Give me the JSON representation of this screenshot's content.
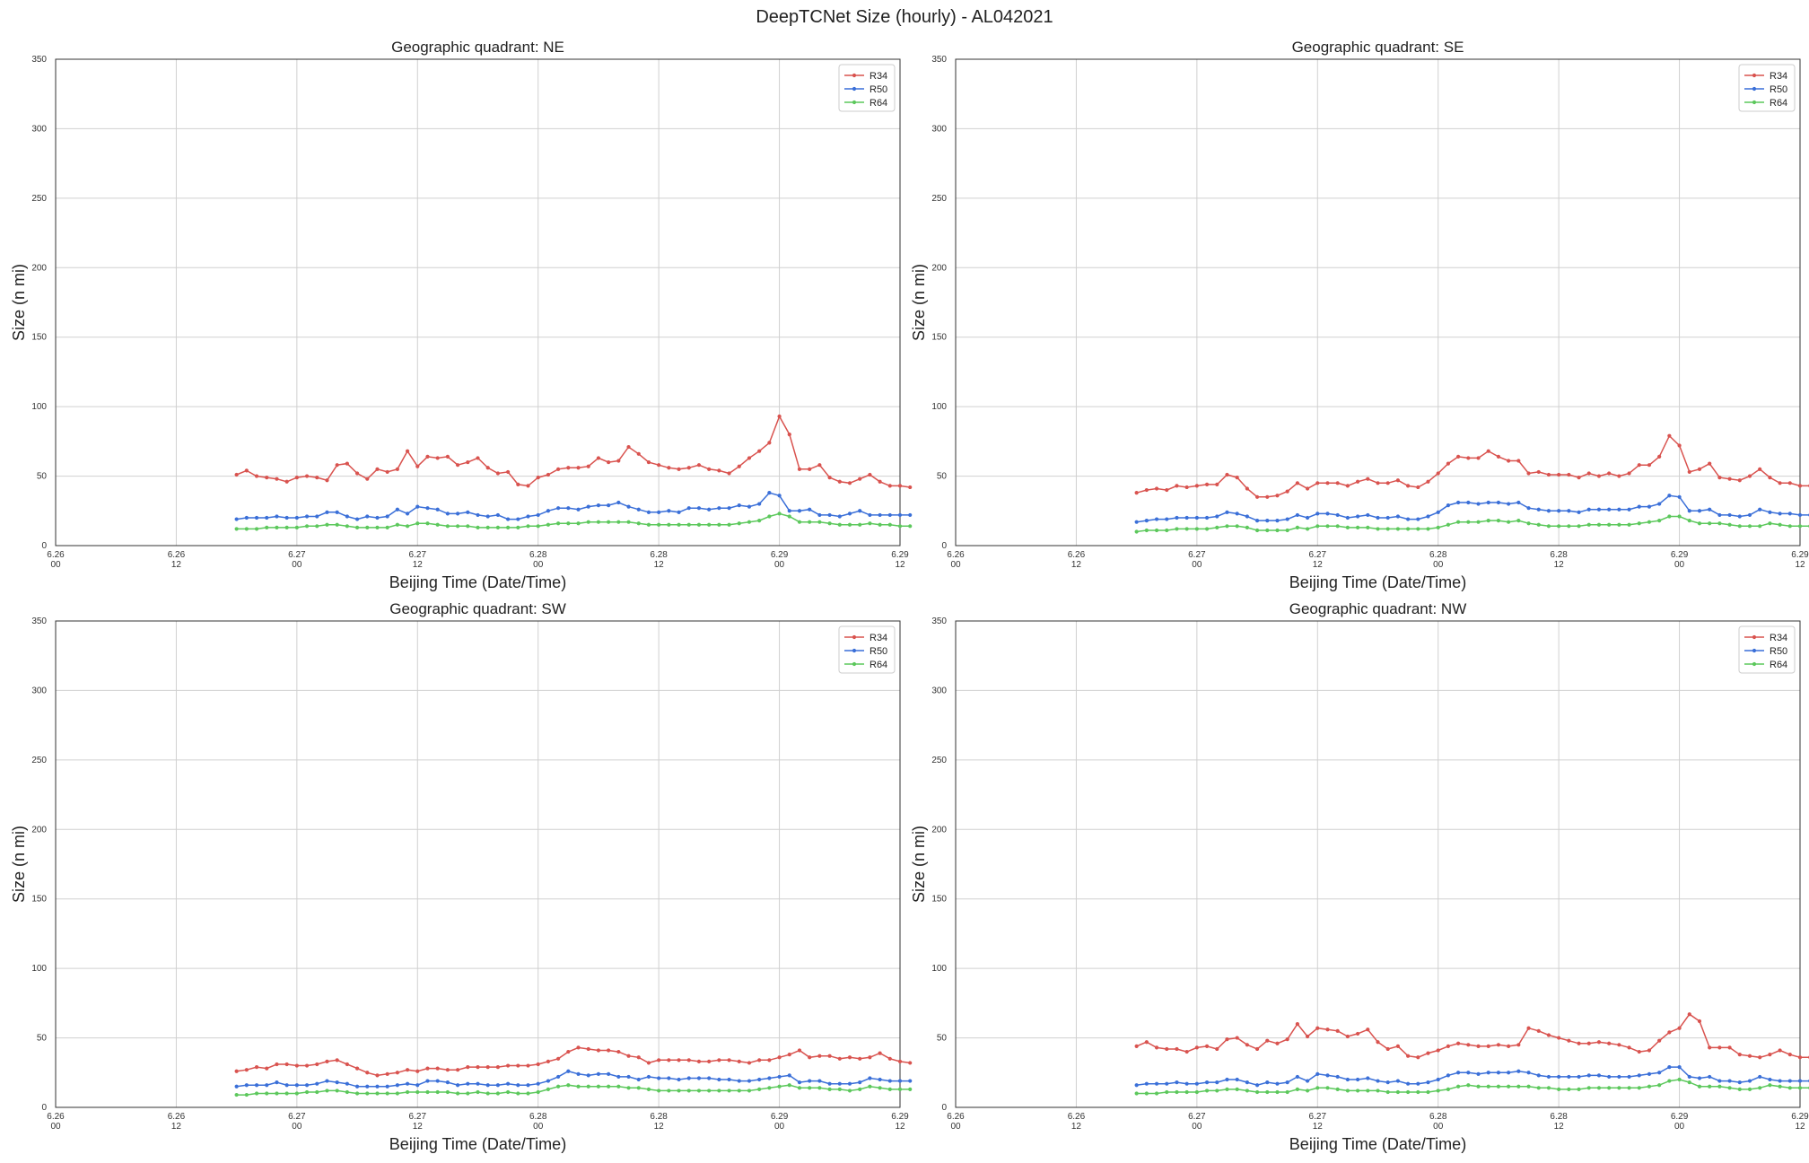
{
  "figure": {
    "title": "DeepTCNet Size (hourly) - AL042021"
  },
  "colors": {
    "R34": "#d9534f",
    "R50": "#3a6fd8",
    "R64": "#5cc85c",
    "grid": "#d0d0d0",
    "frame": "#333333"
  },
  "chart_data": [
    {
      "type": "line",
      "title": "Geographic quadrant: NE",
      "xlabel": "Beijing Time (Date/Time)",
      "ylabel": "Size (n mi)",
      "ylim": [
        0,
        350
      ],
      "yticks": [
        0,
        50,
        100,
        150,
        200,
        250,
        300,
        350
      ],
      "x_range_hours": [
        0,
        84
      ],
      "x_start_hour": 18,
      "x_step_hours": 1,
      "xtick_labels": [
        [
          "6.26",
          "00"
        ],
        [
          "6.26",
          "12"
        ],
        [
          "6.27",
          "00"
        ],
        [
          "6.27",
          "12"
        ],
        [
          "6.28",
          "00"
        ],
        [
          "6.28",
          "12"
        ],
        [
          "6.29",
          "00"
        ],
        [
          "6.29",
          "12"
        ]
      ],
      "grid": true,
      "legend": "top-right",
      "series": [
        {
          "name": "R34",
          "values": [
            51,
            54,
            50,
            49,
            48,
            46,
            49,
            50,
            49,
            47,
            58,
            59,
            52,
            48,
            55,
            53,
            55,
            68,
            57,
            64,
            63,
            64,
            58,
            60,
            63,
            56,
            52,
            53,
            44,
            43,
            49,
            51,
            55,
            56,
            56,
            57,
            63,
            60,
            61,
            71,
            66,
            60,
            58,
            56,
            55,
            56,
            58,
            55,
            54,
            52,
            57,
            63,
            68,
            74,
            93,
            80,
            55,
            55,
            58,
            49,
            46,
            45,
            48,
            51,
            46,
            43,
            43,
            42
          ]
        },
        {
          "name": "R50",
          "values": [
            19,
            20,
            20,
            20,
            21,
            20,
            20,
            21,
            21,
            24,
            24,
            21,
            19,
            21,
            20,
            21,
            26,
            23,
            28,
            27,
            26,
            23,
            23,
            24,
            22,
            21,
            22,
            19,
            19,
            21,
            22,
            25,
            27,
            27,
            26,
            28,
            29,
            29,
            31,
            28,
            26,
            24,
            24,
            25,
            24,
            27,
            27,
            26,
            27,
            27,
            29,
            28,
            30,
            38,
            36,
            25,
            25,
            26,
            22,
            22,
            21,
            23,
            25,
            22,
            22,
            22,
            22,
            22
          ]
        },
        {
          "name": "R64",
          "values": [
            12,
            12,
            12,
            13,
            13,
            13,
            13,
            14,
            14,
            15,
            15,
            14,
            13,
            13,
            13,
            13,
            15,
            14,
            16,
            16,
            15,
            14,
            14,
            14,
            13,
            13,
            13,
            13,
            13,
            14,
            14,
            15,
            16,
            16,
            16,
            17,
            17,
            17,
            17,
            17,
            16,
            15,
            15,
            15,
            15,
            15,
            15,
            15,
            15,
            15,
            16,
            17,
            18,
            21,
            23,
            21,
            17,
            17,
            17,
            16,
            15,
            15,
            15,
            16,
            15,
            15,
            14,
            14
          ]
        }
      ]
    },
    {
      "type": "line",
      "title": "Geographic quadrant: SE",
      "xlabel": "Beijing Time (Date/Time)",
      "ylabel": "Size (n mi)",
      "ylim": [
        0,
        350
      ],
      "yticks": [
        0,
        50,
        100,
        150,
        200,
        250,
        300,
        350
      ],
      "x_range_hours": [
        0,
        84
      ],
      "x_start_hour": 18,
      "x_step_hours": 1,
      "xtick_labels": [
        [
          "6.26",
          "00"
        ],
        [
          "6.26",
          "12"
        ],
        [
          "6.27",
          "00"
        ],
        [
          "6.27",
          "12"
        ],
        [
          "6.28",
          "00"
        ],
        [
          "6.28",
          "12"
        ],
        [
          "6.29",
          "00"
        ],
        [
          "6.29",
          "12"
        ]
      ],
      "grid": true,
      "legend": "top-right",
      "series": [
        {
          "name": "R34",
          "values": [
            38,
            40,
            41,
            40,
            43,
            42,
            43,
            44,
            44,
            51,
            49,
            41,
            35,
            35,
            36,
            39,
            45,
            41,
            45,
            45,
            45,
            43,
            46,
            48,
            45,
            45,
            47,
            43,
            42,
            46,
            52,
            59,
            64,
            63,
            63,
            68,
            64,
            61,
            61,
            52,
            53,
            51,
            51,
            51,
            49,
            52,
            50,
            52,
            50,
            52,
            58,
            58,
            64,
            79,
            72,
            53,
            55,
            59,
            49,
            48,
            47,
            50,
            55,
            49,
            45,
            45,
            43,
            43
          ]
        },
        {
          "name": "R50",
          "values": [
            17,
            18,
            19,
            19,
            20,
            20,
            20,
            20,
            21,
            24,
            23,
            21,
            18,
            18,
            18,
            19,
            22,
            20,
            23,
            23,
            22,
            20,
            21,
            22,
            20,
            20,
            21,
            19,
            19,
            21,
            24,
            29,
            31,
            31,
            30,
            31,
            31,
            30,
            31,
            27,
            26,
            25,
            25,
            25,
            24,
            26,
            26,
            26,
            26,
            26,
            28,
            28,
            30,
            36,
            35,
            25,
            25,
            26,
            22,
            22,
            21,
            22,
            26,
            24,
            23,
            23,
            22,
            22
          ]
        },
        {
          "name": "R64",
          "values": [
            10,
            11,
            11,
            11,
            12,
            12,
            12,
            12,
            13,
            14,
            14,
            13,
            11,
            11,
            11,
            11,
            13,
            12,
            14,
            14,
            14,
            13,
            13,
            13,
            12,
            12,
            12,
            12,
            12,
            12,
            13,
            15,
            17,
            17,
            17,
            18,
            18,
            17,
            18,
            16,
            15,
            14,
            14,
            14,
            14,
            15,
            15,
            15,
            15,
            15,
            16,
            17,
            18,
            21,
            21,
            18,
            16,
            16,
            16,
            15,
            14,
            14,
            14,
            16,
            15,
            14,
            14,
            14
          ]
        }
      ]
    },
    {
      "type": "line",
      "title": "Geographic quadrant: SW",
      "xlabel": "Beijing Time (Date/Time)",
      "ylabel": "Size (n mi)",
      "ylim": [
        0,
        350
      ],
      "yticks": [
        0,
        50,
        100,
        150,
        200,
        250,
        300,
        350
      ],
      "x_range_hours": [
        0,
        84
      ],
      "x_start_hour": 18,
      "x_step_hours": 1,
      "xtick_labels": [
        [
          "6.26",
          "00"
        ],
        [
          "6.26",
          "12"
        ],
        [
          "6.27",
          "00"
        ],
        [
          "6.27",
          "12"
        ],
        [
          "6.28",
          "00"
        ],
        [
          "6.28",
          "12"
        ],
        [
          "6.29",
          "00"
        ],
        [
          "6.29",
          "12"
        ]
      ],
      "grid": true,
      "legend": "top-right",
      "series": [
        {
          "name": "R34",
          "values": [
            26,
            27,
            29,
            28,
            31,
            31,
            30,
            30,
            31,
            33,
            34,
            31,
            28,
            25,
            23,
            24,
            25,
            27,
            26,
            28,
            28,
            27,
            27,
            29,
            29,
            29,
            29,
            30,
            30,
            30,
            31,
            33,
            35,
            40,
            43,
            42,
            41,
            41,
            40,
            37,
            36,
            32,
            34,
            34,
            34,
            34,
            33,
            33,
            34,
            34,
            33,
            32,
            34,
            34,
            36,
            38,
            41,
            36,
            37,
            37,
            35,
            36,
            35,
            36,
            39,
            35,
            33,
            32
          ]
        },
        {
          "name": "R50",
          "values": [
            15,
            16,
            16,
            16,
            18,
            16,
            16,
            16,
            17,
            19,
            18,
            17,
            15,
            15,
            15,
            15,
            16,
            17,
            16,
            19,
            19,
            18,
            16,
            17,
            17,
            16,
            16,
            17,
            16,
            16,
            17,
            19,
            22,
            26,
            24,
            23,
            24,
            24,
            22,
            22,
            20,
            22,
            21,
            21,
            20,
            21,
            21,
            21,
            20,
            20,
            19,
            19,
            20,
            21,
            22,
            23,
            18,
            19,
            19,
            17,
            17,
            17,
            18,
            21,
            20,
            19,
            19,
            19
          ]
        },
        {
          "name": "R64",
          "values": [
            9,
            9,
            10,
            10,
            10,
            10,
            10,
            11,
            11,
            12,
            12,
            11,
            10,
            10,
            10,
            10,
            10,
            11,
            11,
            11,
            11,
            11,
            10,
            10,
            11,
            10,
            10,
            11,
            10,
            10,
            11,
            13,
            15,
            16,
            15,
            15,
            15,
            15,
            15,
            14,
            14,
            13,
            12,
            12,
            12,
            12,
            12,
            12,
            12,
            12,
            12,
            12,
            13,
            14,
            15,
            16,
            14,
            14,
            14,
            13,
            13,
            12,
            13,
            15,
            14,
            13,
            13,
            13
          ]
        }
      ]
    },
    {
      "type": "line",
      "title": "Geographic quadrant: NW",
      "xlabel": "Beijing Time (Date/Time)",
      "ylabel": "Size (n mi)",
      "ylim": [
        0,
        350
      ],
      "yticks": [
        0,
        50,
        100,
        150,
        200,
        250,
        300,
        350
      ],
      "x_range_hours": [
        0,
        84
      ],
      "x_start_hour": 18,
      "x_step_hours": 1,
      "xtick_labels": [
        [
          "6.26",
          "00"
        ],
        [
          "6.26",
          "12"
        ],
        [
          "6.27",
          "00"
        ],
        [
          "6.27",
          "12"
        ],
        [
          "6.28",
          "00"
        ],
        [
          "6.28",
          "12"
        ],
        [
          "6.29",
          "00"
        ],
        [
          "6.29",
          "12"
        ]
      ],
      "grid": true,
      "legend": "top-right",
      "series": [
        {
          "name": "R34",
          "values": [
            44,
            47,
            43,
            42,
            42,
            40,
            43,
            44,
            42,
            49,
            50,
            45,
            42,
            48,
            46,
            49,
            60,
            51,
            57,
            56,
            55,
            51,
            53,
            56,
            47,
            42,
            44,
            37,
            36,
            39,
            41,
            44,
            46,
            45,
            44,
            44,
            45,
            44,
            45,
            57,
            55,
            52,
            50,
            48,
            46,
            46,
            47,
            46,
            45,
            43,
            40,
            41,
            48,
            54,
            57,
            67,
            62,
            43,
            43,
            43,
            38,
            37,
            36,
            38,
            41,
            38,
            36,
            36
          ]
        },
        {
          "name": "R50",
          "values": [
            16,
            17,
            17,
            17,
            18,
            17,
            17,
            18,
            18,
            20,
            20,
            18,
            16,
            18,
            17,
            18,
            22,
            19,
            24,
            23,
            22,
            20,
            20,
            21,
            19,
            18,
            19,
            17,
            17,
            18,
            20,
            23,
            25,
            25,
            24,
            25,
            25,
            25,
            26,
            25,
            23,
            22,
            22,
            22,
            22,
            23,
            23,
            22,
            22,
            22,
            23,
            24,
            25,
            29,
            29,
            22,
            21,
            22,
            19,
            19,
            18,
            19,
            22,
            20,
            19,
            19,
            19,
            19
          ]
        },
        {
          "name": "R64",
          "values": [
            10,
            10,
            10,
            11,
            11,
            11,
            11,
            12,
            12,
            13,
            13,
            12,
            11,
            11,
            11,
            11,
            13,
            12,
            14,
            14,
            13,
            12,
            12,
            12,
            12,
            11,
            11,
            11,
            11,
            11,
            12,
            13,
            15,
            16,
            15,
            15,
            15,
            15,
            15,
            15,
            14,
            14,
            13,
            13,
            13,
            14,
            14,
            14,
            14,
            14,
            14,
            15,
            16,
            19,
            20,
            18,
            15,
            15,
            15,
            14,
            13,
            13,
            14,
            16,
            15,
            14,
            14,
            14
          ]
        }
      ]
    }
  ]
}
